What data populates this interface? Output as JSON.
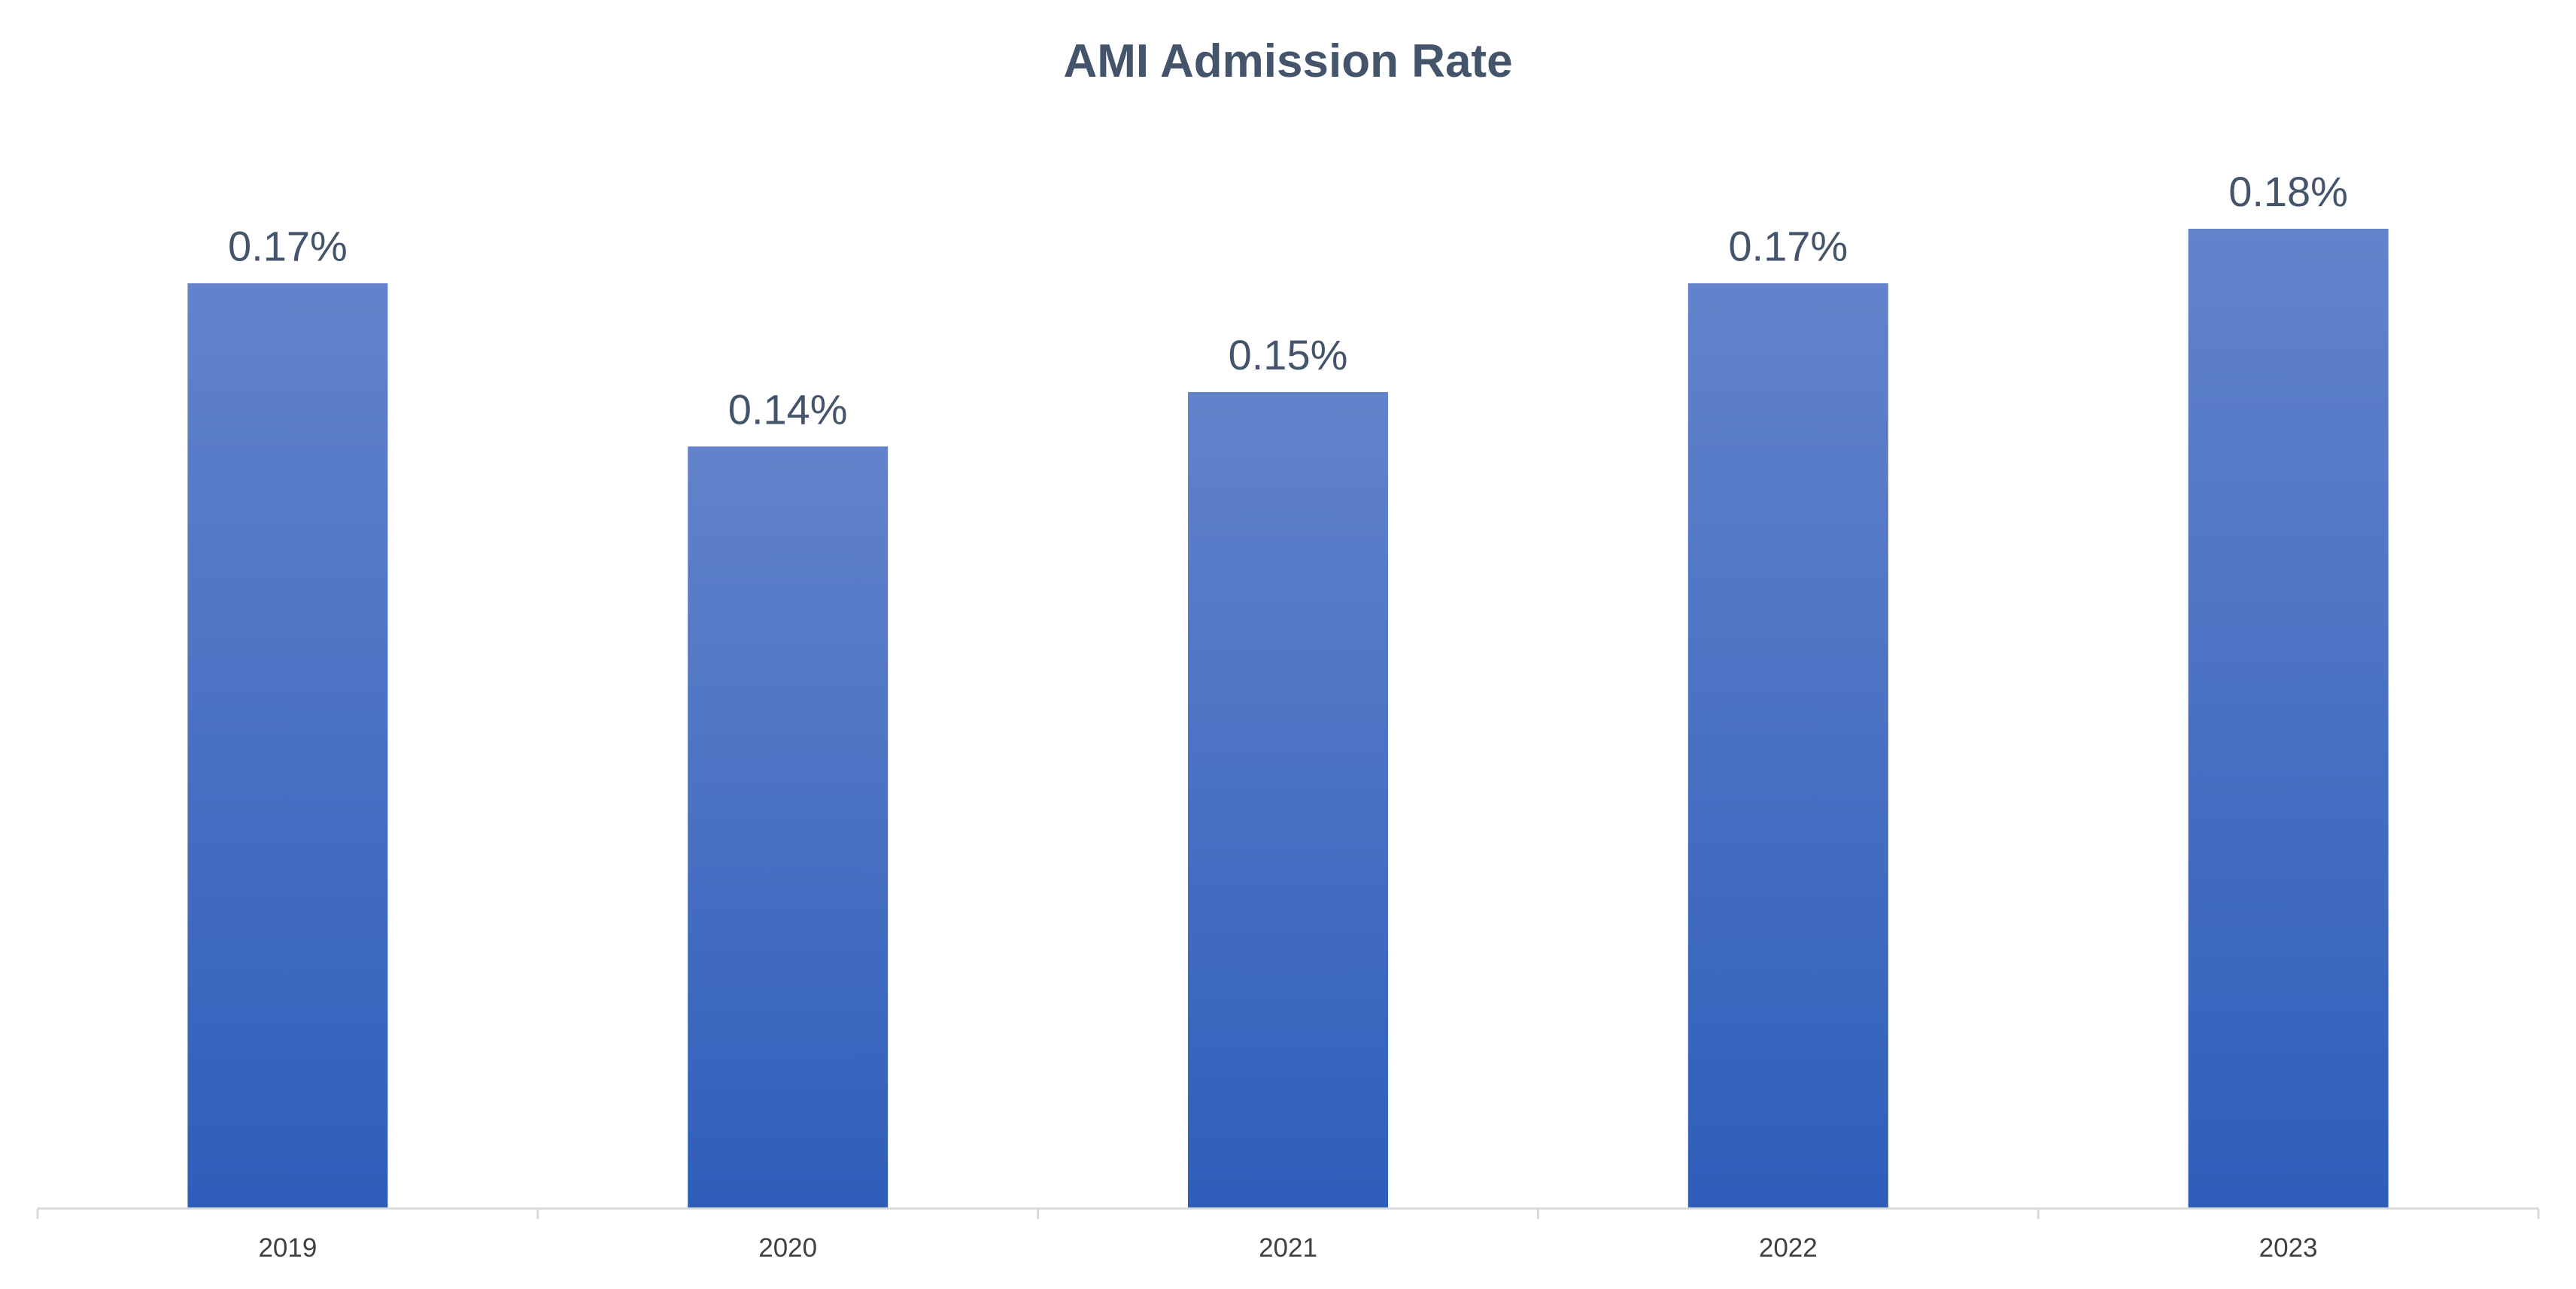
{
  "chart_data": {
    "type": "bar",
    "title": "AMI Admission Rate",
    "xlabel": "",
    "ylabel": "",
    "categories": [
      "2019",
      "2020",
      "2021",
      "2022",
      "2023"
    ],
    "values": [
      0.17,
      0.14,
      0.15,
      0.17,
      0.18
    ],
    "data_labels": [
      "0.17%",
      "0.14%",
      "0.15%",
      "0.17%",
      "0.18%"
    ],
    "value_unit": "%",
    "ylim": [
      0,
      0.18
    ],
    "grid": false,
    "legend": "none",
    "colors": {
      "bar_top": "#6383CB",
      "bar_bottom": "#2E5EBA",
      "title": "#44546A",
      "label": "#44546A",
      "tick_label": "#404040",
      "axis": "#D9D9D9"
    }
  }
}
